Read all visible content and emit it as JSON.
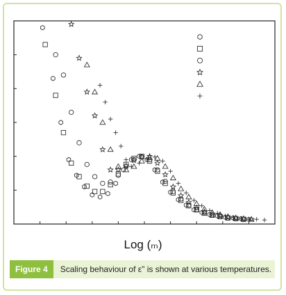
{
  "figure": {
    "label": "Figure 4",
    "caption": "Scaling behaviour of ε\" is shown at various temperatures.",
    "accent_color": "#8fbf3f",
    "caption_bg": "#eaf3d6"
  },
  "chart_data": {
    "type": "scatter",
    "xlabel": "Log (ₘ)",
    "ylabel": "",
    "grid": false,
    "legend_position": "top-right",
    "xlim": [
      0,
      10
    ],
    "ylim": [
      0,
      3
    ],
    "series": [
      {
        "marker": "hexagon",
        "x": [
          1.1,
          1.5,
          1.8,
          2.1,
          2.4,
          2.7,
          3.0,
          3.3,
          3.6,
          3.9,
          4.2,
          4.5,
          4.8,
          5.1,
          5.4,
          5.7,
          6.0,
          6.3,
          6.6,
          6.9,
          7.2,
          7.5,
          7.8,
          8.1,
          8.4,
          8.7,
          9.0
        ],
        "y": [
          2.9,
          2.15,
          1.5,
          0.95,
          0.72,
          0.55,
          0.43,
          0.4,
          0.45,
          0.6,
          0.8,
          0.95,
          1.0,
          0.95,
          0.8,
          0.62,
          0.47,
          0.36,
          0.28,
          0.21,
          0.17,
          0.14,
          0.12,
          0.1,
          0.09,
          0.08,
          0.07
        ]
      },
      {
        "marker": "square",
        "x": [
          1.2,
          1.6,
          1.9,
          2.2,
          2.5,
          2.8,
          3.1,
          3.4,
          3.7,
          4.0,
          4.3,
          4.6,
          4.9,
          5.2,
          5.5,
          5.8,
          6.1,
          6.4,
          6.7,
          7.0,
          7.3,
          7.6,
          7.9,
          8.2,
          8.5,
          8.8
        ],
        "y": [
          2.65,
          1.9,
          1.35,
          0.9,
          0.7,
          0.56,
          0.48,
          0.48,
          0.58,
          0.74,
          0.88,
          0.97,
          1.0,
          0.93,
          0.78,
          0.6,
          0.46,
          0.35,
          0.27,
          0.21,
          0.16,
          0.13,
          0.11,
          0.09,
          0.08,
          0.07
        ]
      },
      {
        "marker": "circle",
        "x": [
          1.6,
          1.9,
          2.2,
          2.5,
          2.8,
          3.1,
          3.4,
          3.7,
          4.0,
          4.3,
          4.6,
          4.9,
          5.2,
          5.5,
          5.8,
          6.1,
          6.4,
          6.7,
          7.0,
          7.3,
          7.6,
          7.9,
          8.2,
          8.5,
          8.8
        ],
        "y": [
          2.5,
          2.2,
          1.65,
          1.2,
          0.88,
          0.7,
          0.6,
          0.62,
          0.72,
          0.85,
          0.95,
          0.99,
          0.95,
          0.8,
          0.63,
          0.48,
          0.37,
          0.28,
          0.21,
          0.17,
          0.13,
          0.11,
          0.09,
          0.08,
          0.07
        ]
      },
      {
        "marker": "star",
        "x": [
          2.2,
          2.5,
          2.8,
          3.1,
          3.4,
          3.7,
          4.0,
          4.3,
          4.6,
          4.9,
          5.2,
          5.5,
          5.8,
          6.1,
          6.4,
          6.7,
          7.0,
          7.3,
          7.6,
          7.9,
          8.2,
          8.5,
          8.8,
          9.1
        ],
        "y": [
          2.95,
          2.45,
          1.95,
          1.6,
          1.1,
          0.8,
          0.8,
          0.86,
          0.94,
          0.99,
          1.0,
          0.9,
          0.73,
          0.55,
          0.42,
          0.32,
          0.24,
          0.18,
          0.14,
          0.12,
          0.1,
          0.09,
          0.08,
          0.07
        ]
      },
      {
        "marker": "triangle",
        "x": [
          2.8,
          3.1,
          3.4,
          3.7,
          4.0,
          4.3,
          4.6,
          4.9,
          5.2,
          5.5,
          5.8,
          6.1,
          6.4,
          6.7,
          7.0,
          7.3,
          7.6,
          7.9,
          8.2,
          8.5,
          8.8,
          9.1
        ],
        "y": [
          2.35,
          1.95,
          1.5,
          1.1,
          0.85,
          0.8,
          0.85,
          0.93,
          0.98,
          0.97,
          0.85,
          0.68,
          0.52,
          0.4,
          0.3,
          0.22,
          0.17,
          0.14,
          0.11,
          0.09,
          0.08,
          0.07
        ]
      },
      {
        "marker": "plus",
        "x": [
          3.3,
          3.5,
          3.7,
          3.9,
          4.1,
          4.3,
          4.5,
          4.8,
          5.1,
          5.4,
          5.7,
          6.0,
          6.3,
          6.6,
          6.9,
          7.2,
          7.5,
          7.8,
          8.1,
          8.4,
          8.7,
          9.0,
          9.3,
          9.6
        ],
        "y": [
          2.05,
          1.8,
          1.55,
          1.35,
          1.15,
          0.95,
          0.85,
          0.9,
          0.96,
          0.99,
          0.93,
          0.78,
          0.6,
          0.46,
          0.35,
          0.27,
          0.2,
          0.16,
          0.12,
          0.1,
          0.08,
          0.07,
          0.07,
          0.06
        ]
      }
    ]
  }
}
